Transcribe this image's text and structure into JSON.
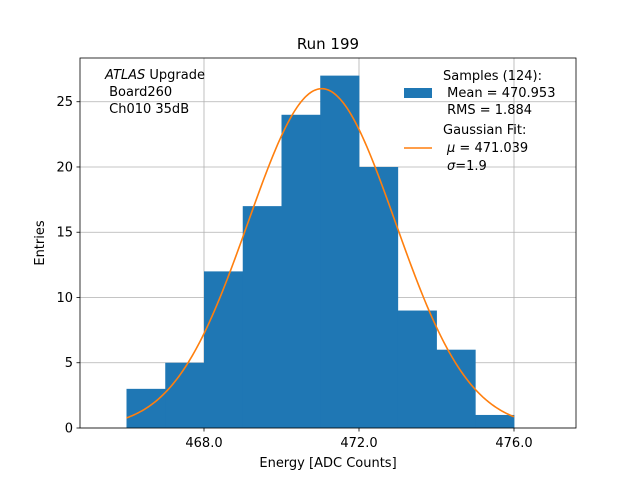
{
  "chart_data": {
    "type": "bar",
    "title": "Run 199",
    "xlabel": "Energy [ADC Counts]",
    "ylabel": "Entries",
    "xlim": [
      464.8,
      477.6
    ],
    "ylim": [
      0,
      28.35
    ],
    "grid": true,
    "xticks": [
      468,
      472,
      476
    ],
    "xtick_labels": [
      "468.0",
      "472.0",
      "476.0"
    ],
    "yticks": [
      0,
      5,
      10,
      15,
      20,
      25
    ],
    "ytick_labels": [
      "0",
      "5",
      "10",
      "15",
      "20",
      "25"
    ],
    "histogram": {
      "bin_edges": [
        466,
        467,
        468,
        469,
        470,
        471,
        472,
        473,
        474,
        475,
        476
      ],
      "counts": [
        3,
        5,
        12,
        17,
        24,
        27,
        20,
        9,
        6,
        1
      ],
      "color": "#1f77b4"
    },
    "fit": {
      "name": "Gaussian Fit",
      "mu": 471.039,
      "sigma": 1.9,
      "amplitude": 26,
      "x_range": [
        466,
        476
      ],
      "color": "#ff7f0e"
    },
    "annotation": {
      "italic": "ATLAS",
      "line1_rest": " Upgrade",
      "line2": " Board260",
      "line3": " Ch010 35dB"
    },
    "legend": {
      "position": "top-right",
      "samples_title": "Samples (124):",
      "samples_mean": " Mean = 470.953",
      "samples_rms": " RMS = 1.884",
      "fit_title": "Gaussian Fit:",
      "fit_mu_symbol": "μ",
      "fit_mu_rest": " = 471.039",
      "fit_sigma_symbol": "σ",
      "fit_sigma_rest": "=1.9"
    }
  }
}
